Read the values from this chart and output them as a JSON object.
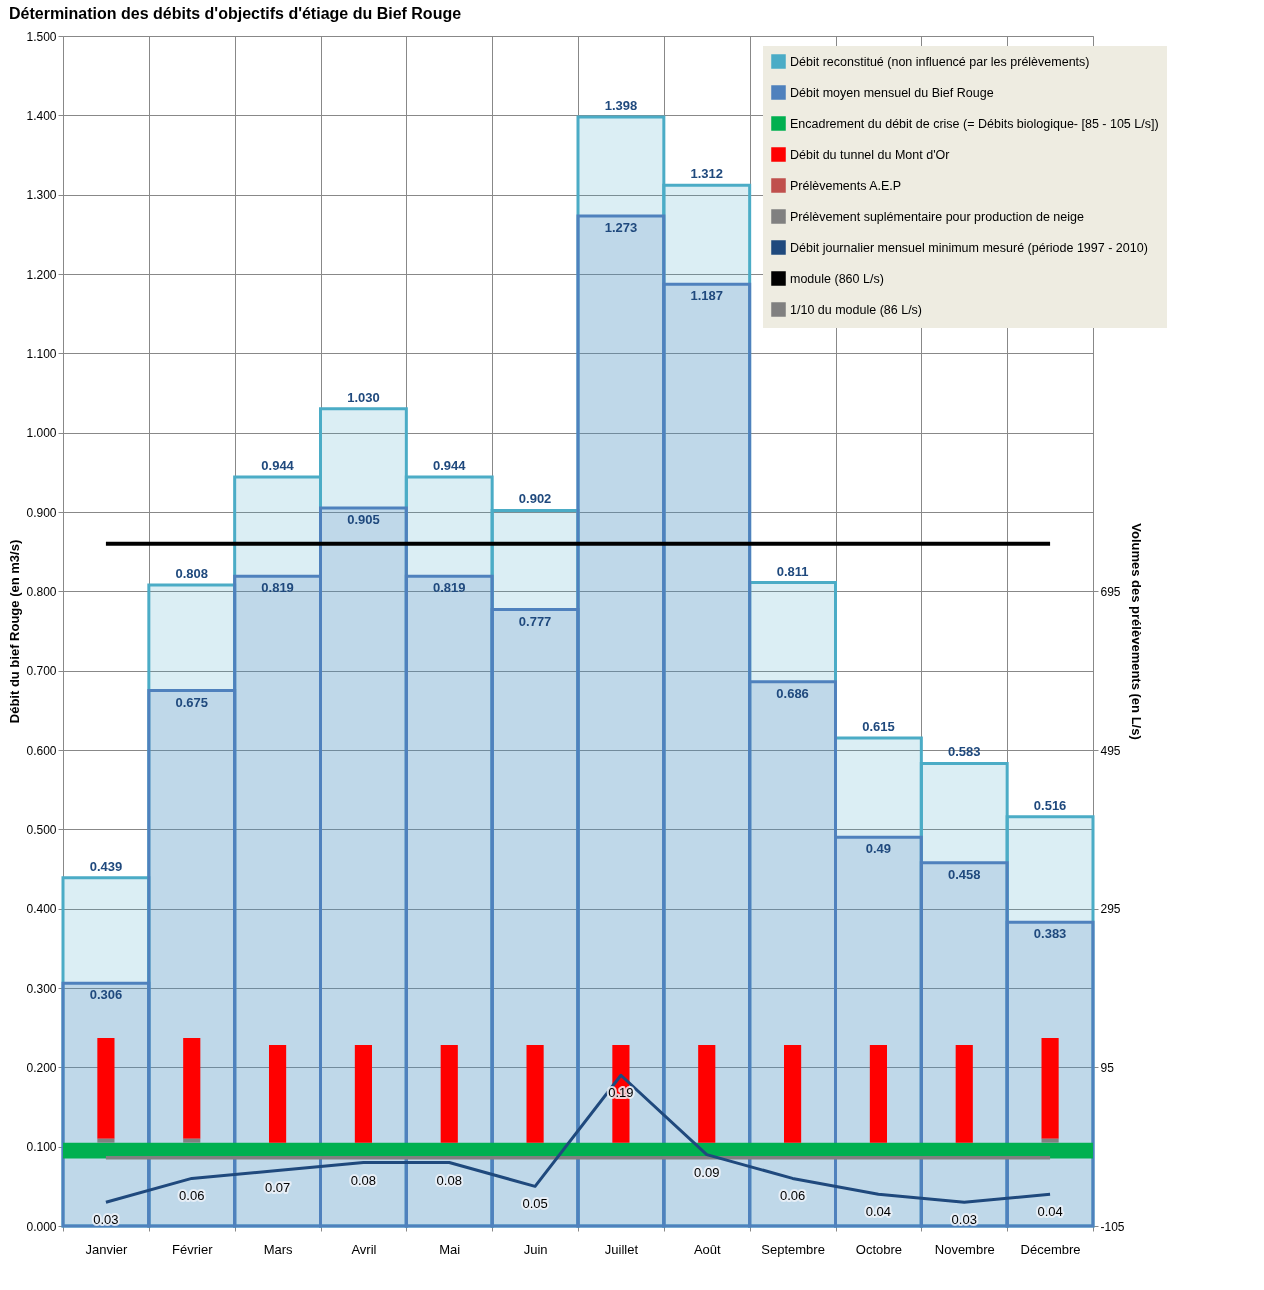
{
  "chart_data": {
    "type": "bar",
    "title": "Détermination des débits d'objectifs d'étiage du Bief Rouge",
    "ylabel": "Débit du bief Rouge (en m3/s)",
    "y2label": "Volumes des prélèvements (en L/s)",
    "categories": [
      "Janvier",
      "Février",
      "Mars",
      "Avril",
      "Mai",
      "Juin",
      "Juillet",
      "Août",
      "Septembre",
      "Octobre",
      "Novembre",
      "Décembre"
    ],
    "series": [
      {
        "name": "Débit reconstitué (non influencé par les prélèvements)",
        "type": "bar",
        "color": "#4bacc6",
        "values": [
          0.439,
          0.808,
          0.944,
          1.03,
          0.944,
          0.902,
          1.398,
          1.312,
          0.811,
          0.615,
          0.583,
          0.516
        ],
        "value_labels": [
          "0.439",
          "0.808",
          "0.944",
          "1.030",
          "0.944",
          "0.902",
          "1.398",
          "1.312",
          "0.811",
          "0.615",
          "0.583",
          "0.516"
        ]
      },
      {
        "name": "Débit moyen mensuel du Bief Rouge",
        "type": "bar",
        "color": "#4f81bd",
        "values": [
          0.306,
          0.675,
          0.819,
          0.905,
          0.819,
          0.777,
          1.273,
          1.187,
          0.686,
          0.49,
          0.458,
          0.383
        ],
        "value_labels": [
          "0.306",
          "0.675",
          "0.819",
          "0.905",
          "0.819",
          "0.777",
          "1.273",
          "1.187",
          "0.686",
          "0.49",
          "0.458",
          "0.383"
        ]
      },
      {
        "name": "Débit du tunnel du Mont d'Or",
        "type": "bar",
        "axis": "y2",
        "color": "#ff0000",
        "base": [
          5,
          5,
          0,
          0,
          0,
          0,
          0,
          0,
          0,
          0,
          0,
          5
        ],
        "values": [
          127,
          127,
          123,
          123,
          123,
          123,
          123,
          123,
          123,
          123,
          123,
          127
        ]
      },
      {
        "name": "Prélèvements A.E.P",
        "type": "bar",
        "axis": "y2",
        "color": "#c0504d",
        "values": [
          null,
          null,
          null,
          null,
          null,
          null,
          null,
          null,
          null,
          null,
          null,
          null
        ]
      },
      {
        "name": "Prélèvement suplémentaire pour production de neige",
        "type": "bar",
        "axis": "y2",
        "color": "#808080",
        "values": [
          5,
          5,
          null,
          null,
          null,
          null,
          null,
          null,
          null,
          null,
          null,
          5
        ]
      },
      {
        "name": "Débit journalier mensuel minimum mesuré (période 1997 - 2010)",
        "type": "line",
        "color": "#1f497d",
        "values": [
          0.03,
          0.06,
          0.07,
          0.08,
          0.08,
          0.05,
          0.19,
          0.09,
          0.06,
          0.04,
          0.03,
          0.04
        ],
        "value_labels": [
          "0.03",
          "0.06",
          "0.07",
          "0.08",
          "0.08",
          "0.05",
          "0.19",
          "0.09",
          "0.06",
          "0.04",
          "0.03",
          "0.04"
        ]
      }
    ],
    "bands": [
      {
        "axis": "y",
        "from": 0.085,
        "to": 0.105,
        "label": "Encadrement du débit de crise (= Débits biologique- [85 - 105 L/s])",
        "color": "#00b050"
      }
    ],
    "ref_lines": [
      {
        "axis": "y",
        "value": 0.86,
        "label": "module (860 L/s)",
        "color": "#000000"
      },
      {
        "axis": "y",
        "value": 0.086,
        "label": "1/10 du module (86 L/s)",
        "color": "#808080"
      }
    ],
    "ylim": [
      0,
      1.5
    ],
    "yticks": [
      {
        "value": 0,
        "label": "0.000"
      },
      {
        "value": 0.1,
        "label": "0.100"
      },
      {
        "value": 0.2,
        "label": "0.200"
      },
      {
        "value": 0.3,
        "label": "0.300"
      },
      {
        "value": 0.4,
        "label": "0.400"
      },
      {
        "value": 0.5,
        "label": "0.500"
      },
      {
        "value": 0.6,
        "label": "0.600"
      },
      {
        "value": 0.7,
        "label": "0.700"
      },
      {
        "value": 0.8,
        "label": "0.800"
      },
      {
        "value": 0.9,
        "label": "0.900"
      },
      {
        "value": 1.0,
        "label": "1.000"
      },
      {
        "value": 1.1,
        "label": "1.100"
      },
      {
        "value": 1.2,
        "label": "1.200"
      },
      {
        "value": 1.3,
        "label": "1.300"
      },
      {
        "value": 1.4,
        "label": "1.400"
      },
      {
        "value": 1.5,
        "label": "1.500"
      }
    ],
    "y2lim": [
      -105,
      1395
    ],
    "y2ticks": [
      -105,
      95,
      295,
      495,
      695
    ],
    "grid": true,
    "legend": "top right"
  }
}
